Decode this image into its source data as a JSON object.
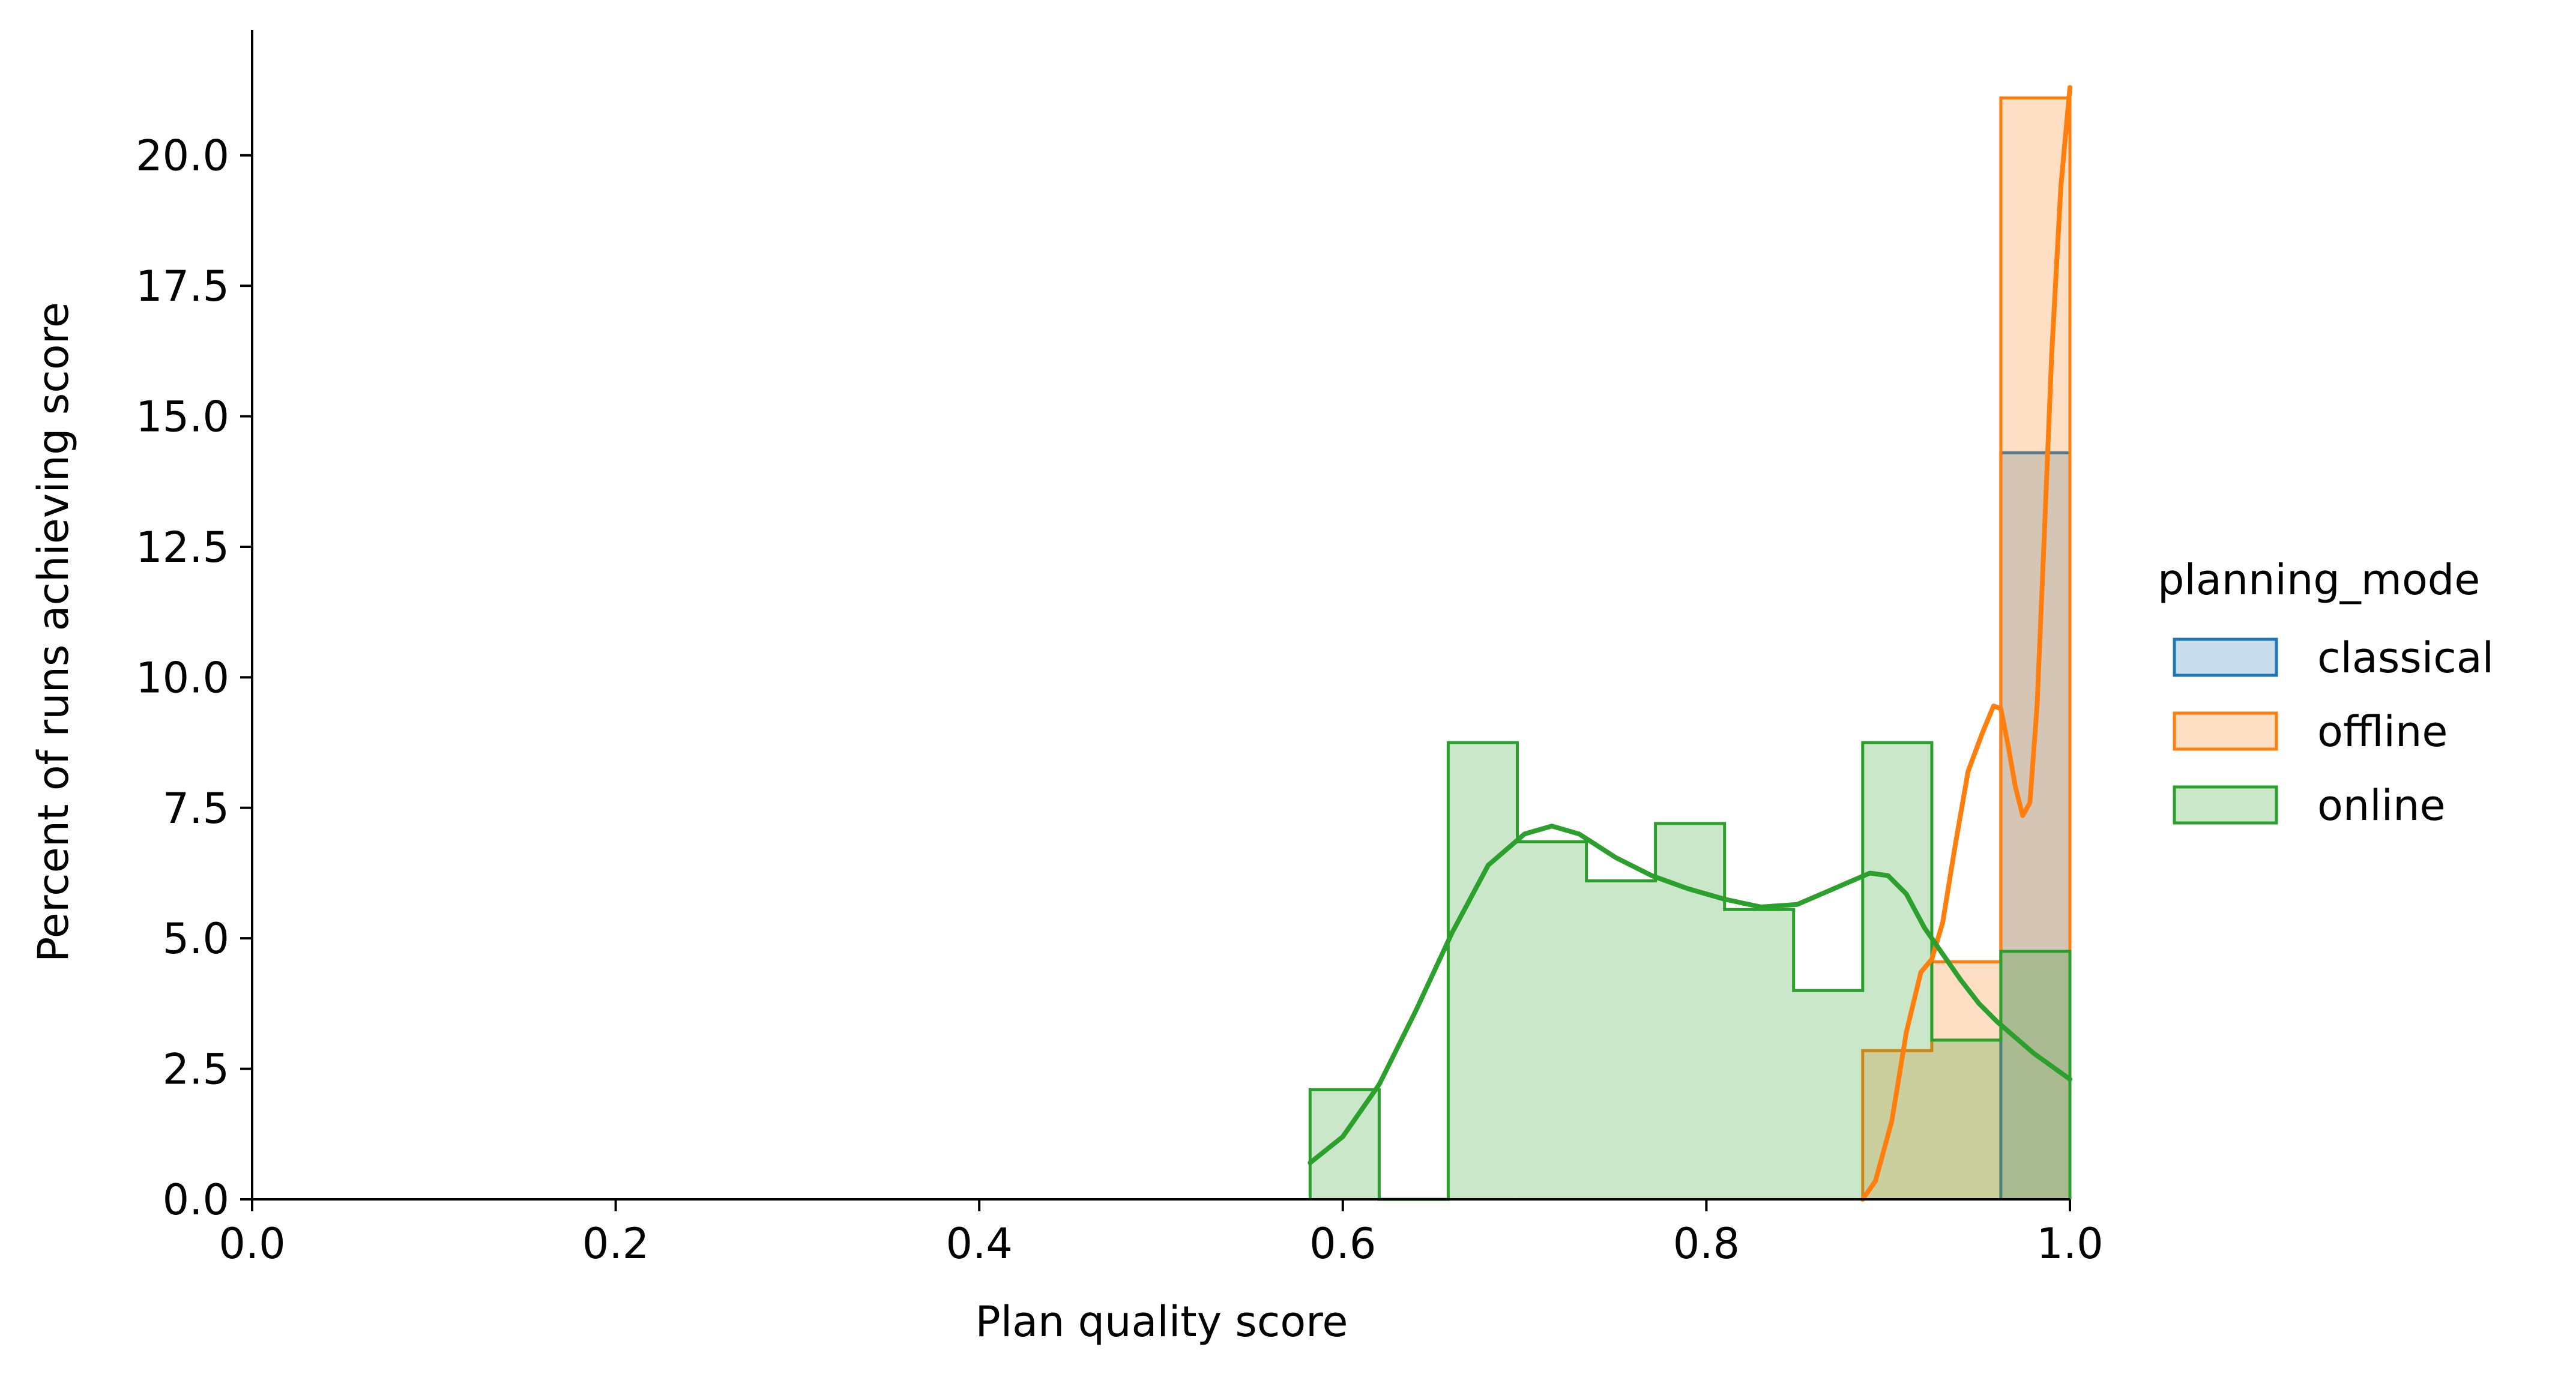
{
  "chart_data": {
    "type": "histogram",
    "xlabel": "Plan quality score",
    "ylabel": "Percent of runs achieving score",
    "xlim": [
      0.0,
      1.0
    ],
    "ylim": [
      0.0,
      22.4
    ],
    "x_ticks": [
      "0.0",
      "0.2",
      "0.4",
      "0.6",
      "0.8",
      "1.0"
    ],
    "y_ticks": [
      "0.0",
      "2.5",
      "5.0",
      "7.5",
      "10.0",
      "12.5",
      "15.0",
      "17.5",
      "20.0"
    ],
    "grid": false,
    "legend": {
      "title": "planning_mode",
      "placement": "right"
    },
    "series": [
      {
        "name": "classical",
        "color": "#1f77b4",
        "bins": [
          {
            "x0": 0.962,
            "x1": 1.0,
            "value": 14.3
          }
        ],
        "kde": []
      },
      {
        "name": "offline",
        "color": "#ff7f0e",
        "bins": [
          {
            "x0": 0.886,
            "x1": 0.924,
            "value": 2.85
          },
          {
            "x0": 0.924,
            "x1": 0.962,
            "value": 4.55
          },
          {
            "x0": 0.962,
            "x1": 1.0,
            "value": 21.1
          }
        ],
        "kde": [
          [
            0.886,
            0.0
          ],
          [
            0.893,
            0.35
          ],
          [
            0.902,
            1.5
          ],
          [
            0.91,
            3.2
          ],
          [
            0.918,
            4.35
          ],
          [
            0.924,
            4.6
          ],
          [
            0.93,
            5.3
          ],
          [
            0.937,
            6.8
          ],
          [
            0.944,
            8.2
          ],
          [
            0.952,
            8.95
          ],
          [
            0.958,
            9.45
          ],
          [
            0.962,
            9.4
          ],
          [
            0.966,
            8.7
          ],
          [
            0.97,
            7.9
          ],
          [
            0.974,
            7.35
          ],
          [
            0.978,
            7.6
          ],
          [
            0.982,
            9.5
          ],
          [
            0.986,
            12.8
          ],
          [
            0.99,
            16.2
          ],
          [
            0.995,
            19.4
          ],
          [
            1.0,
            21.3
          ]
        ]
      },
      {
        "name": "online",
        "color": "#2ca02c",
        "bins": [
          {
            "x0": 0.582,
            "x1": 0.62,
            "value": 2.1
          },
          {
            "x0": 0.62,
            "x1": 0.658,
            "value": 0.0
          },
          {
            "x0": 0.658,
            "x1": 0.696,
            "value": 8.75
          },
          {
            "x0": 0.696,
            "x1": 0.734,
            "value": 6.85
          },
          {
            "x0": 0.734,
            "x1": 0.772,
            "value": 6.1
          },
          {
            "x0": 0.772,
            "x1": 0.81,
            "value": 7.2
          },
          {
            "x0": 0.81,
            "x1": 0.848,
            "value": 5.55
          },
          {
            "x0": 0.848,
            "x1": 0.886,
            "value": 4.0
          },
          {
            "x0": 0.886,
            "x1": 0.924,
            "value": 8.75
          },
          {
            "x0": 0.924,
            "x1": 0.962,
            "value": 3.05
          },
          {
            "x0": 0.962,
            "x1": 1.0,
            "value": 4.75
          }
        ],
        "kde": [
          [
            0.582,
            0.7
          ],
          [
            0.6,
            1.2
          ],
          [
            0.62,
            2.2
          ],
          [
            0.64,
            3.6
          ],
          [
            0.66,
            5.1
          ],
          [
            0.68,
            6.4
          ],
          [
            0.7,
            7.0
          ],
          [
            0.715,
            7.15
          ],
          [
            0.73,
            7.0
          ],
          [
            0.75,
            6.55
          ],
          [
            0.77,
            6.2
          ],
          [
            0.79,
            5.95
          ],
          [
            0.81,
            5.75
          ],
          [
            0.83,
            5.6
          ],
          [
            0.85,
            5.65
          ],
          [
            0.87,
            5.95
          ],
          [
            0.89,
            6.25
          ],
          [
            0.9,
            6.2
          ],
          [
            0.91,
            5.85
          ],
          [
            0.92,
            5.2
          ],
          [
            0.93,
            4.7
          ],
          [
            0.94,
            4.2
          ],
          [
            0.95,
            3.75
          ],
          [
            0.96,
            3.4
          ],
          [
            0.97,
            3.1
          ],
          [
            0.98,
            2.8
          ],
          [
            0.99,
            2.55
          ],
          [
            1.0,
            2.3
          ]
        ]
      }
    ]
  }
}
